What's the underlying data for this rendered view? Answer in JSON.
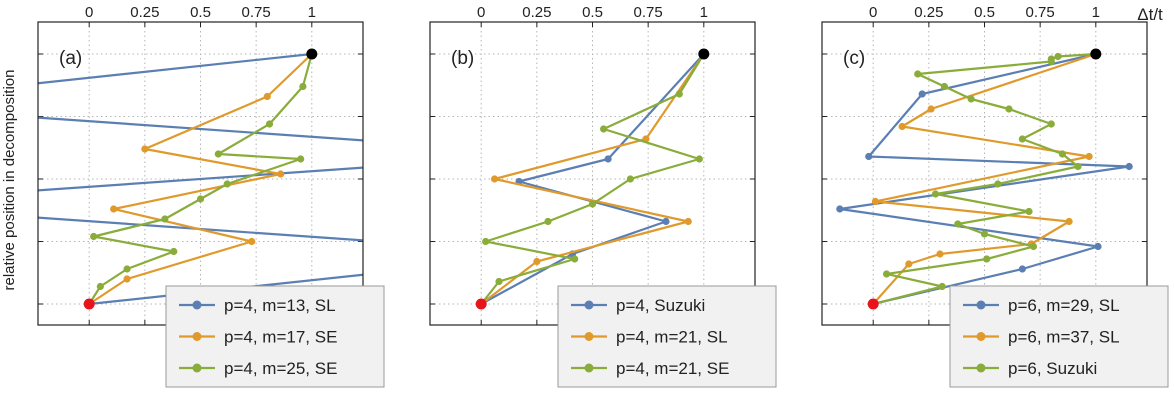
{
  "figure": {
    "ylabel": "relative position in decomposition",
    "xlabel": "Δt/t"
  },
  "chart_data": [
    {
      "type": "line",
      "panel_label": "(a)",
      "xticks": [
        "0",
        "0.25",
        "0.5",
        "0.75",
        "1"
      ],
      "xlim": [
        -0.23,
        1.23
      ],
      "grid": true,
      "legend_position": "bottom-right",
      "series": [
        {
          "name": "p=4, m=13, SL",
          "color": "#5b7fb3",
          "markers": false,
          "x": [
            0,
            2.1,
            -1.1,
            2.1,
            -1.1,
            1
          ],
          "y": [
            0,
            0.2,
            0.4,
            0.6,
            0.8,
            1
          ]
        },
        {
          "name": "p=4, m=17, SE",
          "color": "#e09a2c",
          "markers": true,
          "x": [
            0,
            0.17,
            0.73,
            0.11,
            0.86,
            0.25,
            0.8,
            1
          ],
          "y": [
            0,
            0.1,
            0.25,
            0.38,
            0.52,
            0.62,
            0.83,
            1
          ]
        },
        {
          "name": "p=4, m=25, SE",
          "color": "#8aac3a",
          "markers": true,
          "x": [
            0,
            0.05,
            0.17,
            0.38,
            0.02,
            0.34,
            0.5,
            0.62,
            0.95,
            0.58,
            0.81,
            0.96,
            1
          ],
          "y": [
            0,
            0.07,
            0.14,
            0.21,
            0.27,
            0.34,
            0.42,
            0.48,
            0.58,
            0.6,
            0.72,
            0.87,
            1
          ]
        }
      ]
    },
    {
      "type": "line",
      "panel_label": "(b)",
      "xticks": [
        "0",
        "0.25",
        "0.5",
        "0.75",
        "1"
      ],
      "xlim": [
        -0.23,
        1.23
      ],
      "grid": true,
      "legend_position": "bottom-right",
      "series": [
        {
          "name": "p=4, Suzuki",
          "color": "#5b7fb3",
          "markers": true,
          "x": [
            0,
            0.41,
            0.83,
            0.17,
            0.57,
            1
          ],
          "y": [
            0,
            0.2,
            0.33,
            0.49,
            0.58,
            1
          ]
        },
        {
          "name": "p=4, m=21, SL",
          "color": "#e09a2c",
          "markers": true,
          "x": [
            0,
            0.25,
            0.93,
            0.06,
            0.74,
            1
          ],
          "y": [
            0,
            0.17,
            0.33,
            0.5,
            0.66,
            1
          ]
        },
        {
          "name": "p=4, m=21, SE",
          "color": "#8aac3a",
          "markers": true,
          "x": [
            0,
            0.08,
            0.42,
            0.02,
            0.3,
            0.5,
            0.67,
            0.98,
            0.55,
            0.89,
            1
          ],
          "y": [
            0,
            0.09,
            0.18,
            0.25,
            0.33,
            0.4,
            0.5,
            0.58,
            0.7,
            0.84,
            1
          ]
        }
      ]
    },
    {
      "type": "line",
      "panel_label": "(c)",
      "xticks": [
        "0",
        "0.25",
        "0.5",
        "0.75",
        "1"
      ],
      "xlim": [
        -0.23,
        1.23
      ],
      "grid": true,
      "legend_position": "bottom-right",
      "series": [
        {
          "name": "p=6, m=29, SL",
          "color": "#5b7fb3",
          "markers": true,
          "x": [
            0,
            0.67,
            1.01,
            -0.15,
            1.15,
            -0.02,
            0.22,
            1
          ],
          "y": [
            0,
            0.14,
            0.23,
            0.38,
            0.55,
            0.59,
            0.84,
            1
          ]
        },
        {
          "name": "p=6, m=37, SL",
          "color": "#e09a2c",
          "markers": true,
          "x": [
            0,
            0.16,
            0.3,
            0.71,
            0.88,
            0.01,
            0.97,
            0.13,
            0.26,
            1
          ],
          "y": [
            0,
            0.16,
            0.2,
            0.24,
            0.33,
            0.41,
            0.59,
            0.71,
            0.78,
            1
          ]
        },
        {
          "name": "p=6, Suzuki",
          "color": "#8aac3a",
          "markers": true,
          "x": [
            0,
            0.31,
            0.06,
            0.51,
            0.72,
            0.5,
            0.38,
            0.7,
            0.28,
            0.56,
            0.92,
            0.85,
            0.67,
            0.8,
            0.61,
            0.44,
            0.32,
            0.2,
            0.8,
            0.8,
            0.83,
            1
          ],
          "y": [
            0,
            0.07,
            0.12,
            0.18,
            0.23,
            0.28,
            0.32,
            0.37,
            0.44,
            0.48,
            0.55,
            0.6,
            0.66,
            0.72,
            0.78,
            0.82,
            0.87,
            0.92,
            0.97,
            0.98,
            0.99,
            1
          ]
        }
      ]
    }
  ]
}
